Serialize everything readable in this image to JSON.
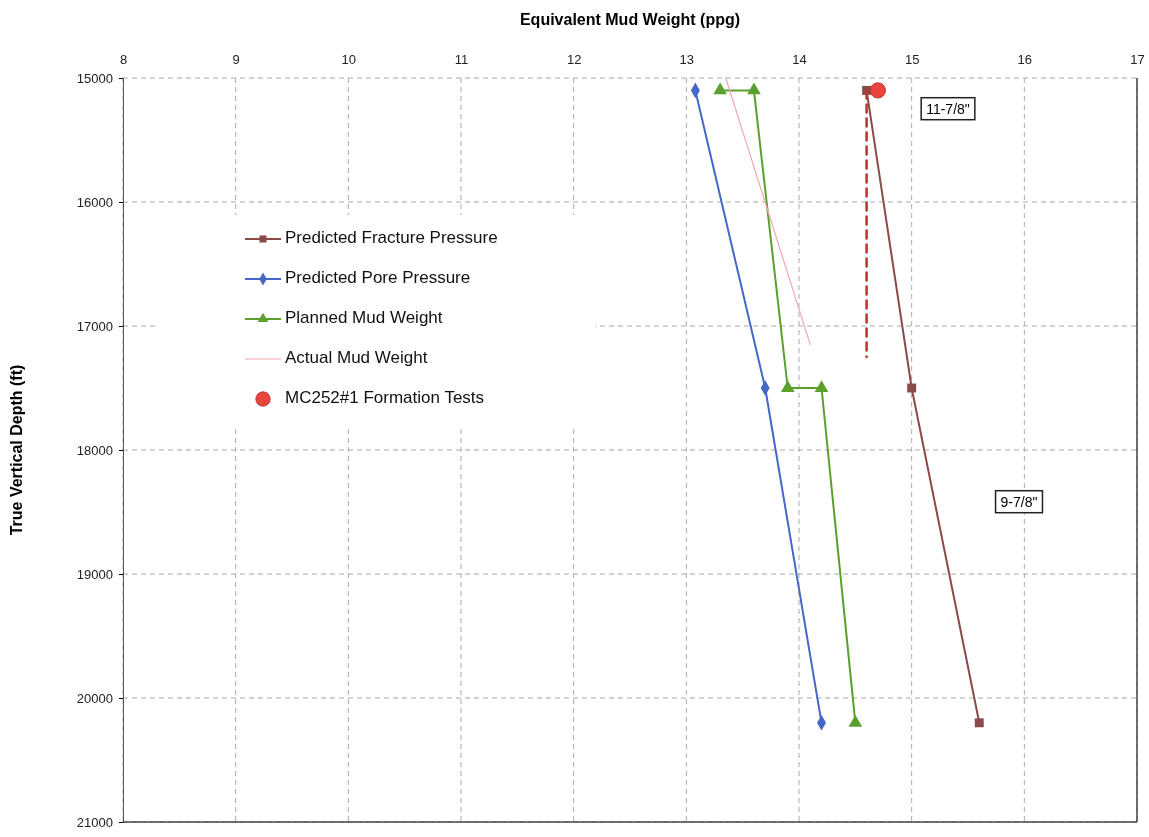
{
  "chart_data": {
    "type": "line",
    "xlabel": "Equivalent Mud Weight (ppg)",
    "ylabel": "True Vertical Depth (ft)",
    "xlim": [
      8,
      17
    ],
    "xticks": [
      8,
      9,
      10,
      11,
      12,
      13,
      14,
      15,
      16,
      17
    ],
    "ylim": [
      21000,
      15000
    ],
    "yticks": [
      15000,
      16000,
      17000,
      18000,
      19000,
      20000,
      21000
    ],
    "grid": true,
    "legend": "left",
    "series": [
      {
        "name": "Predicted Fracture Pressure",
        "color": "#8b4a4a",
        "marker": "square",
        "x": [
          14.6,
          15.0,
          15.6
        ],
        "values": [
          15100,
          17500,
          20200
        ]
      },
      {
        "name": "Predicted Pore Pressure",
        "color": "#4468c8",
        "marker": "diamond",
        "x": [
          13.08,
          13.7,
          14.2
        ],
        "values": [
          15100,
          17500,
          20200
        ]
      },
      {
        "name": "Planned Mud Weight",
        "color": "#5aa02c",
        "marker": "triangle",
        "x": [
          13.3,
          13.6,
          13.9,
          14.2,
          14.5
        ],
        "values": [
          15100,
          15100,
          17500,
          17500,
          20200
        ]
      },
      {
        "name": "Actual Mud Weight",
        "color": "#f4a6b0",
        "marker": "none",
        "x": [
          13.35,
          14.1
        ],
        "values": [
          15000,
          17150
        ]
      },
      {
        "name": "MC252#1 Formation Tests",
        "type": "scatter",
        "color": "#e8463c",
        "marker": "circle",
        "x": [
          14.7
        ],
        "values": [
          15100
        ]
      },
      {
        "color": "#c0302c",
        "marker": "none",
        "line_style": "dashed",
        "x": [
          14.6,
          14.6
        ],
        "values": [
          15100,
          17250
        ]
      }
    ],
    "annotations": [
      "11-7/8\"",
      "9-7/8\""
    ]
  }
}
